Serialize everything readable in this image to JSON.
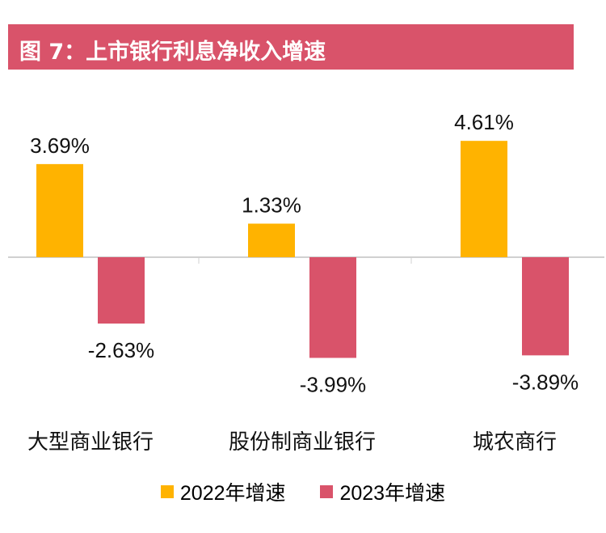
{
  "title": "图 7：上市银行利息净收入增速",
  "chart_data": {
    "type": "bar",
    "title": "图 7：上市银行利息净收入增速",
    "categories": [
      "大型商业银行",
      "股份制商业银行",
      "城农商行"
    ],
    "series": [
      {
        "name": "2022年增速",
        "values": [
          3.69,
          1.33,
          4.61
        ],
        "labels": [
          "3.69%",
          "1.33%",
          "4.61%"
        ],
        "color": "#ffb300"
      },
      {
        "name": "2023年增速",
        "values": [
          -2.63,
          -3.99,
          -3.89
        ],
        "labels": [
          "-2.63%",
          "-3.99%",
          "-3.89%"
        ],
        "color": "#d9536a"
      }
    ],
    "xlabel": "",
    "ylabel": "",
    "grid": false,
    "legend": "bottom"
  }
}
